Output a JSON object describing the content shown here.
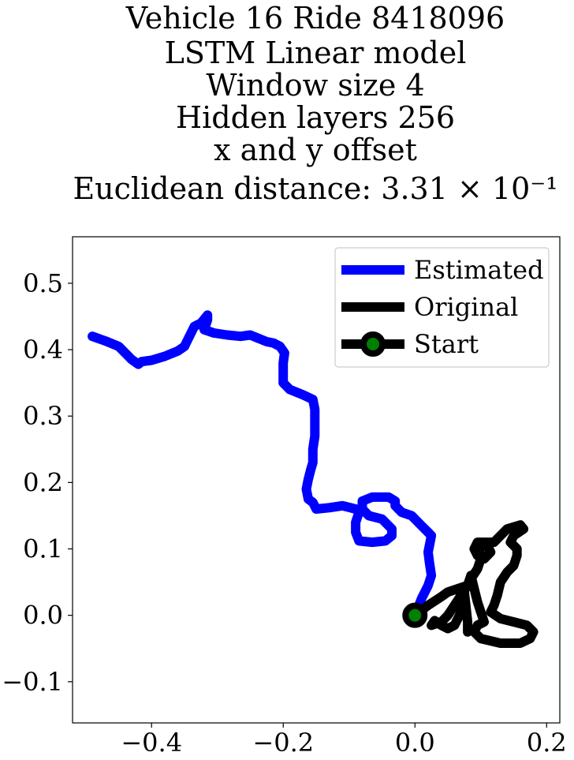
{
  "chart_data": {
    "type": "line",
    "title_lines": [
      "Vehicle 16 Ride 8418096",
      "LSTM Linear model",
      "Window size 4",
      "Hidden layers 256",
      "x and y offset",
      "Euclidean distance: 3.31 × 10⁻¹"
    ],
    "xlabel": "",
    "ylabel": "",
    "xlim": [
      -0.52,
      0.22
    ],
    "ylim": [
      -0.162,
      0.57
    ],
    "x_ticks": [
      -0.4,
      -0.2,
      0.0,
      0.2
    ],
    "x_tick_labels": [
      "−0.4",
      "−0.2",
      "0.0",
      "0.2"
    ],
    "y_ticks": [
      -0.1,
      0.0,
      0.1,
      0.2,
      0.3,
      0.4,
      0.5
    ],
    "y_tick_labels": [
      "−0.1",
      "0.0",
      "0.1",
      "0.2",
      "0.3",
      "0.4",
      "0.5"
    ],
    "grid": false,
    "legend_position": "top-right",
    "series": [
      {
        "name": "Estimated",
        "color": "#0000ff",
        "points": [
          [
            0.0,
            0.0
          ],
          [
            0.01,
            0.025
          ],
          [
            0.02,
            0.045
          ],
          [
            0.025,
            0.06
          ],
          [
            0.022,
            0.08
          ],
          [
            0.02,
            0.095
          ],
          [
            0.025,
            0.12
          ],
          [
            0.02,
            0.125
          ],
          [
            0.01,
            0.135
          ],
          [
            -0.005,
            0.15
          ],
          [
            -0.02,
            0.155
          ],
          [
            -0.03,
            0.165
          ],
          [
            -0.03,
            0.172
          ],
          [
            -0.04,
            0.178
          ],
          [
            -0.065,
            0.178
          ],
          [
            -0.08,
            0.172
          ],
          [
            -0.08,
            0.16
          ],
          [
            -0.07,
            0.15
          ],
          [
            -0.05,
            0.145
          ],
          [
            -0.035,
            0.13
          ],
          [
            -0.035,
            0.12
          ],
          [
            -0.045,
            0.112
          ],
          [
            -0.065,
            0.11
          ],
          [
            -0.085,
            0.112
          ],
          [
            -0.09,
            0.125
          ],
          [
            -0.09,
            0.14
          ],
          [
            -0.085,
            0.155
          ],
          [
            -0.09,
            0.16
          ],
          [
            -0.11,
            0.165
          ],
          [
            -0.13,
            0.162
          ],
          [
            -0.15,
            0.16
          ],
          [
            -0.155,
            0.17
          ],
          [
            -0.162,
            0.175
          ],
          [
            -0.165,
            0.19
          ],
          [
            -0.162,
            0.205
          ],
          [
            -0.158,
            0.22
          ],
          [
            -0.155,
            0.23
          ],
          [
            -0.155,
            0.25
          ],
          [
            -0.152,
            0.27
          ],
          [
            -0.152,
            0.29
          ],
          [
            -0.152,
            0.31
          ],
          [
            -0.155,
            0.325
          ],
          [
            -0.17,
            0.332
          ],
          [
            -0.19,
            0.34
          ],
          [
            -0.2,
            0.35
          ],
          [
            -0.2,
            0.365
          ],
          [
            -0.2,
            0.38
          ],
          [
            -0.198,
            0.395
          ],
          [
            -0.205,
            0.405
          ],
          [
            -0.215,
            0.41
          ],
          [
            -0.225,
            0.412
          ],
          [
            -0.24,
            0.418
          ],
          [
            -0.25,
            0.422
          ],
          [
            -0.265,
            0.42
          ],
          [
            -0.285,
            0.422
          ],
          [
            -0.305,
            0.425
          ],
          [
            -0.32,
            0.43
          ],
          [
            -0.315,
            0.445
          ],
          [
            -0.315,
            0.452
          ],
          [
            -0.325,
            0.44
          ],
          [
            -0.335,
            0.435
          ],
          [
            -0.34,
            0.425
          ],
          [
            -0.345,
            0.415
          ],
          [
            -0.35,
            0.405
          ],
          [
            -0.36,
            0.398
          ],
          [
            -0.38,
            0.39
          ],
          [
            -0.4,
            0.384
          ],
          [
            -0.415,
            0.382
          ],
          [
            -0.42,
            0.378
          ],
          [
            -0.43,
            0.385
          ],
          [
            -0.44,
            0.395
          ],
          [
            -0.45,
            0.405
          ],
          [
            -0.47,
            0.413
          ],
          [
            -0.49,
            0.42
          ]
        ]
      },
      {
        "name": "Original",
        "color": "#000000",
        "points": [
          [
            0.0,
            0.0
          ],
          [
            0.02,
            0.015
          ],
          [
            0.04,
            0.028
          ],
          [
            0.05,
            0.035
          ],
          [
            0.065,
            0.04
          ],
          [
            0.08,
            0.045
          ],
          [
            0.085,
            0.055
          ],
          [
            0.095,
            0.07
          ],
          [
            0.1,
            0.085
          ],
          [
            0.098,
            0.1
          ],
          [
            0.1,
            0.11
          ],
          [
            0.11,
            0.105
          ],
          [
            0.115,
            0.095
          ],
          [
            0.105,
            0.085
          ],
          [
            0.095,
            0.09
          ],
          [
            0.09,
            0.1
          ],
          [
            0.095,
            0.11
          ],
          [
            0.12,
            0.11
          ],
          [
            0.13,
            0.12
          ],
          [
            0.14,
            0.13
          ],
          [
            0.16,
            0.136
          ],
          [
            0.165,
            0.13
          ],
          [
            0.15,
            0.12
          ],
          [
            0.145,
            0.11
          ],
          [
            0.155,
            0.1
          ],
          [
            0.155,
            0.09
          ],
          [
            0.15,
            0.075
          ],
          [
            0.14,
            0.065
          ],
          [
            0.13,
            0.05
          ],
          [
            0.125,
            0.03
          ],
          [
            0.12,
            0.015
          ],
          [
            0.115,
            0.005
          ],
          [
            0.13,
            -0.005
          ],
          [
            0.15,
            -0.01
          ],
          [
            0.17,
            -0.015
          ],
          [
            0.18,
            -0.025
          ],
          [
            0.175,
            -0.035
          ],
          [
            0.16,
            -0.042
          ],
          [
            0.13,
            -0.042
          ],
          [
            0.1,
            -0.035
          ],
          [
            0.09,
            -0.025
          ],
          [
            0.095,
            -0.015
          ],
          [
            0.105,
            -0.01
          ],
          [
            0.1,
            0.005
          ],
          [
            0.095,
            0.02
          ],
          [
            0.09,
            0.04
          ],
          [
            0.085,
            0.06
          ],
          [
            0.08,
            0.045
          ],
          [
            0.07,
            0.03
          ],
          [
            0.06,
            0.015
          ],
          [
            0.05,
            0.0
          ],
          [
            0.04,
            -0.01
          ],
          [
            0.025,
            -0.015
          ],
          [
            0.03,
            -0.008
          ],
          [
            0.04,
            -0.015
          ],
          [
            0.05,
            -0.02
          ],
          [
            0.06,
            -0.015
          ],
          [
            0.065,
            -0.005
          ],
          [
            0.07,
            0.005
          ],
          [
            0.075,
            0.02
          ],
          [
            0.075,
            0.035
          ],
          [
            0.08,
            -0.01
          ],
          [
            0.08,
            -0.025
          ]
        ]
      }
    ],
    "start_marker": {
      "name": "Start",
      "x": 0.0,
      "y": 0.0,
      "edge_color": "#000000",
      "face_color": "#008000"
    }
  }
}
